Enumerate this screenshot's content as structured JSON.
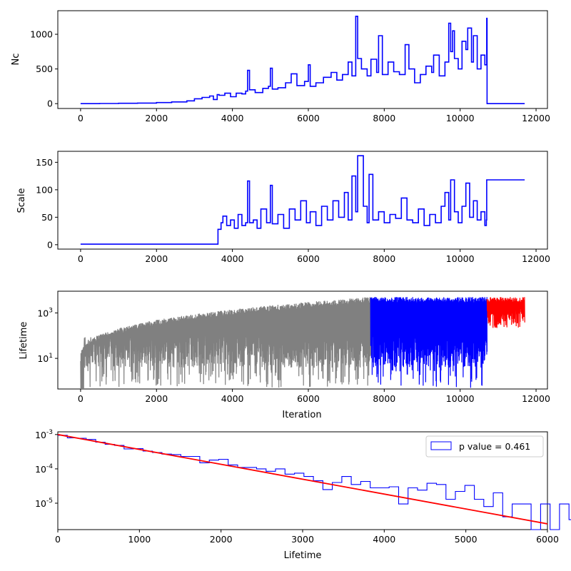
{
  "chart_data": [
    {
      "type": "line",
      "ylabel": "Nc",
      "xlabel": "",
      "xlim": [
        -600,
        12300
      ],
      "ylim": [
        -70,
        1340
      ],
      "xticks": [
        0,
        2000,
        4000,
        6000,
        8000,
        10000,
        12000
      ],
      "yticks": [
        0,
        500,
        1000
      ],
      "series": [
        {
          "color": "#0000ff",
          "x": [
            0,
            500,
            1000,
            1500,
            2000,
            2400,
            2800,
            3000,
            3200,
            3400,
            3500,
            3600,
            3650,
            3800,
            3950,
            4100,
            4250,
            4350,
            4400,
            4450,
            4600,
            4800,
            4950,
            5000,
            5050,
            5200,
            5400,
            5550,
            5700,
            5900,
            6000,
            6050,
            6200,
            6400,
            6600,
            6750,
            6900,
            7050,
            7150,
            7250,
            7300,
            7400,
            7550,
            7650,
            7800,
            7850,
            7950,
            8100,
            8250,
            8400,
            8550,
            8650,
            8800,
            8950,
            9100,
            9250,
            9300,
            9450,
            9600,
            9700,
            9750,
            9800,
            9850,
            9950,
            10050,
            10150,
            10200,
            10300,
            10350,
            10450,
            10550,
            10650,
            10700,
            10710,
            10800,
            11700
          ],
          "y": [
            0,
            2,
            5,
            8,
            15,
            25,
            40,
            70,
            90,
            110,
            60,
            130,
            120,
            150,
            100,
            150,
            140,
            180,
            480,
            200,
            160,
            220,
            250,
            510,
            210,
            230,
            300,
            430,
            260,
            320,
            560,
            250,
            300,
            380,
            450,
            340,
            420,
            600,
            400,
            1260,
            650,
            500,
            400,
            640,
            450,
            980,
            420,
            600,
            460,
            420,
            850,
            500,
            300,
            420,
            540,
            450,
            700,
            400,
            600,
            1160,
            750,
            1050,
            650,
            500,
            900,
            780,
            1090,
            600,
            980,
            500,
            700,
            560,
            1230,
            0,
            0,
            0
          ]
        }
      ]
    },
    {
      "type": "line",
      "ylabel": "Scale",
      "xlabel": "",
      "xlim": [
        -600,
        12300
      ],
      "ylim": [
        -8,
        170
      ],
      "xticks": [
        0,
        2000,
        4000,
        6000,
        8000,
        10000,
        12000
      ],
      "yticks": [
        0,
        50,
        100,
        150
      ],
      "series": [
        {
          "color": "#0000ff",
          "x": [
            0,
            3600,
            3620,
            3700,
            3750,
            3850,
            3950,
            4050,
            4150,
            4250,
            4350,
            4400,
            4450,
            4550,
            4650,
            4750,
            4900,
            5000,
            5050,
            5200,
            5350,
            5500,
            5650,
            5800,
            5950,
            6050,
            6200,
            6350,
            6500,
            6650,
            6800,
            6950,
            7050,
            7150,
            7250,
            7300,
            7450,
            7550,
            7600,
            7700,
            7850,
            8000,
            8150,
            8300,
            8450,
            8600,
            8750,
            8900,
            9050,
            9200,
            9350,
            9500,
            9600,
            9700,
            9750,
            9850,
            9950,
            10050,
            10150,
            10250,
            10350,
            10450,
            10550,
            10650,
            10690,
            10700,
            11700
          ],
          "y": [
            1,
            1,
            28,
            40,
            52,
            35,
            45,
            30,
            55,
            35,
            40,
            116,
            40,
            45,
            30,
            65,
            40,
            108,
            38,
            55,
            30,
            65,
            45,
            80,
            40,
            60,
            35,
            70,
            45,
            80,
            50,
            95,
            45,
            125,
            60,
            162,
            70,
            40,
            128,
            45,
            60,
            40,
            55,
            48,
            85,
            45,
            40,
            65,
            35,
            55,
            40,
            70,
            95,
            45,
            118,
            60,
            40,
            70,
            112,
            50,
            80,
            45,
            60,
            35,
            45,
            118,
            118
          ]
        }
      ]
    },
    {
      "type": "line",
      "ylabel": "Lifetime",
      "xlabel": "Iteration",
      "xlim": [
        -600,
        12300
      ],
      "ylim": [
        0.45,
        9000
      ],
      "yscale": "log",
      "xticks": [
        0,
        2000,
        4000,
        6000,
        8000,
        10000,
        12000
      ],
      "yticks": [
        10,
        1000
      ],
      "ytick_labels": [
        "10^1",
        "10^3"
      ],
      "series": [
        {
          "color": "#808080",
          "x_range": [
            0,
            7640
          ],
          "log_upper_start": 1.0,
          "log_upper_end": 3.7
        },
        {
          "color": "#0000ff",
          "x_range": [
            7640,
            10710
          ],
          "log_upper_start": 3.7,
          "log_upper_end": 3.7
        },
        {
          "color": "#ff0000",
          "x_range": [
            10710,
            11700
          ],
          "log_upper_start": 3.7,
          "log_upper_end": 3.7
        }
      ]
    },
    {
      "type": "histogram",
      "xlabel": "Lifetime",
      "ylabel": "",
      "xlim": [
        0,
        6000
      ],
      "ylim": [
        1.7e-06,
        0.0012
      ],
      "yscale": "log",
      "xticks": [
        0,
        1000,
        2000,
        3000,
        4000,
        5000,
        6000
      ],
      "yticks": [
        1e-05,
        0.0001,
        0.001
      ],
      "ytick_labels": [
        "10^-5",
        "10^-4",
        "10^-3"
      ],
      "bin_width": 116,
      "densities": [
        0.00095,
        0.0008,
        0.00078,
        0.00072,
        0.0006,
        0.00052,
        0.00048,
        0.00038,
        0.00039,
        0.00033,
        0.0003,
        0.00027,
        0.00026,
        0.00023,
        0.00023,
        0.00015,
        0.00018,
        0.00019,
        0.00013,
        0.00011,
        0.00011,
        0.0001,
        8.5e-05,
        0.0001,
        7e-05,
        7.5e-05,
        6e-05,
        4.5e-05,
        2.5e-05,
        4e-05,
        6e-05,
        3.5e-05,
        4.3e-05,
        2.8e-05,
        2.8e-05,
        3e-05,
        9.5e-06,
        2.8e-05,
        2.4e-05,
        3.8e-05,
        3.5e-05,
        1.3e-05,
        2.2e-05,
        3.3e-05,
        1.3e-05,
        8e-06,
        2e-05,
        4e-06,
        9.5e-06,
        9.5e-06,
        1.7e-06,
        9.5e-06,
        1.7e-06,
        9.5e-06,
        3.3e-06,
        3.3e-06,
        1.7e-06,
        9.5e-06,
        1.7e-06,
        1.7e-06
      ],
      "hist_color": "#0000ff",
      "fit": {
        "color": "#ff0000",
        "x": [
          0,
          6000
        ],
        "y": [
          0.001,
          2.5e-06
        ]
      },
      "legend": {
        "label": "p value = 0.461",
        "loc": "upper right"
      }
    }
  ]
}
